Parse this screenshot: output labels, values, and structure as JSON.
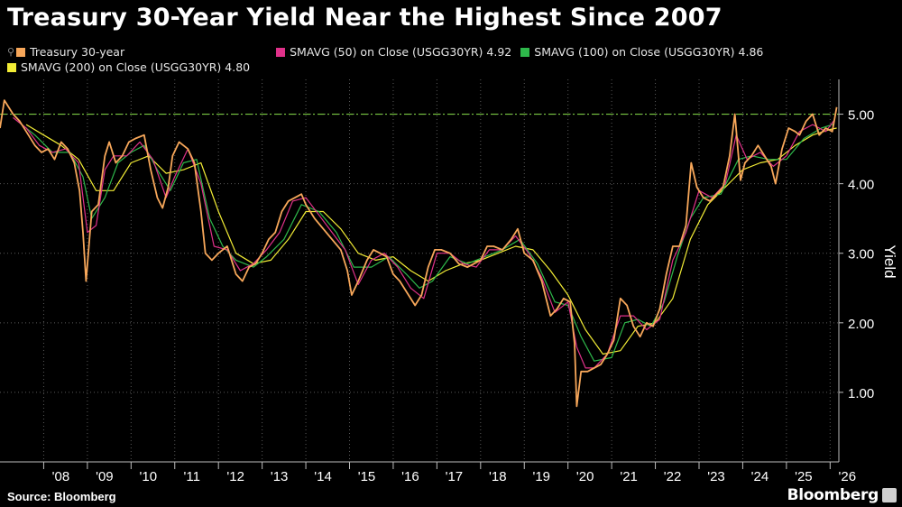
{
  "title": "Treasury 30-Year Yield Near the Highest Since 2007",
  "source": "Source: Bloomberg",
  "brand": "Bloomberg",
  "legend": [
    {
      "label": "Treasury 30-year",
      "value": "",
      "color": "#f7a75a"
    },
    {
      "label": "SMAVG (50)  on Close (USGG30YR)",
      "value": "4.92",
      "color": "#e0318a"
    },
    {
      "label": "SMAVG (100)  on Close (USGG30YR)",
      "value": "4.86",
      "color": "#2eb84b"
    },
    {
      "label": "SMAVG (200)  on Close (USGG30YR)",
      "value": "4.80",
      "color": "#f2ec35"
    }
  ],
  "chart_data": {
    "type": "line",
    "ylabel": "Yield",
    "ylim": [
      0,
      5.5
    ],
    "xlim": [
      2007.0,
      2026.2
    ],
    "yticks": [
      1.0,
      2.0,
      3.0,
      4.0,
      5.0
    ],
    "ytick_labels": [
      "1.00",
      "2.00",
      "3.00",
      "4.00",
      "5.00"
    ],
    "xticks": [
      2008,
      2009,
      2010,
      2011,
      2012,
      2013,
      2014,
      2015,
      2016,
      2017,
      2018,
      2019,
      2020,
      2021,
      2022,
      2023,
      2024,
      2025,
      2026
    ],
    "xtick_labels": [
      "'08",
      "'09",
      "'10",
      "'11",
      "'12",
      "'13",
      "'14",
      "'15",
      "'16",
      "'17",
      "'18",
      "'19",
      "'20",
      "'21",
      "'22",
      "'23",
      "'24",
      "'25",
      "'26"
    ],
    "grid": true,
    "reference_line": {
      "y": 5.0,
      "color": "#7ac943",
      "style": "dash-dot"
    },
    "axis_side": "right",
    "legend_position": "top-left",
    "series": [
      {
        "name": "Treasury 30-year",
        "color": "#f7a75a",
        "x": [
          2007.0,
          2007.1,
          2007.3,
          2007.45,
          2007.6,
          2007.8,
          2007.95,
          2008.1,
          2008.25,
          2008.4,
          2008.55,
          2008.7,
          2008.82,
          2008.9,
          2008.97,
          2009.1,
          2009.25,
          2009.4,
          2009.5,
          2009.65,
          2009.8,
          2009.95,
          2010.1,
          2010.3,
          2010.45,
          2010.6,
          2010.72,
          2010.85,
          2010.95,
          2011.1,
          2011.3,
          2011.45,
          2011.6,
          2011.7,
          2011.85,
          2012.0,
          2012.2,
          2012.4,
          2012.55,
          2012.7,
          2012.85,
          2013.0,
          2013.15,
          2013.3,
          2013.45,
          2013.6,
          2013.75,
          2013.9,
          2014.0,
          2014.2,
          2014.4,
          2014.6,
          2014.8,
          2014.95,
          2015.05,
          2015.2,
          2015.4,
          2015.55,
          2015.7,
          2015.85,
          2016.0,
          2016.15,
          2016.35,
          2016.5,
          2016.65,
          2016.8,
          2016.95,
          2017.1,
          2017.3,
          2017.5,
          2017.7,
          2017.85,
          2018.0,
          2018.15,
          2018.3,
          2018.5,
          2018.7,
          2018.85,
          2019.0,
          2019.2,
          2019.4,
          2019.6,
          2019.75,
          2019.9,
          2020.05,
          2020.15,
          2020.2,
          2020.3,
          2020.45,
          2020.6,
          2020.75,
          2020.9,
          2021.05,
          2021.2,
          2021.35,
          2021.5,
          2021.65,
          2021.8,
          2021.95,
          2022.1,
          2022.25,
          2022.4,
          2022.55,
          2022.7,
          2022.82,
          2022.95,
          2023.1,
          2023.25,
          2023.4,
          2023.55,
          2023.7,
          2023.82,
          2023.95,
          2024.05,
          2024.2,
          2024.35,
          2024.5,
          2024.65,
          2024.75,
          2024.9,
          2025.05,
          2025.2,
          2025.3,
          2025.45,
          2025.6,
          2025.75,
          2025.9,
          2026.05,
          2026.15
        ],
        "y": [
          4.8,
          5.2,
          5.0,
          4.9,
          4.75,
          4.55,
          4.45,
          4.5,
          4.35,
          4.6,
          4.5,
          4.3,
          3.9,
          3.3,
          2.6,
          3.6,
          3.7,
          4.4,
          4.6,
          4.3,
          4.4,
          4.6,
          4.65,
          4.7,
          4.2,
          3.8,
          3.65,
          3.95,
          4.4,
          4.6,
          4.5,
          4.3,
          3.6,
          3.0,
          2.9,
          3.0,
          3.1,
          2.7,
          2.6,
          2.8,
          2.85,
          3.0,
          3.2,
          3.3,
          3.6,
          3.75,
          3.8,
          3.85,
          3.7,
          3.5,
          3.35,
          3.2,
          3.05,
          2.75,
          2.4,
          2.6,
          2.9,
          3.05,
          3.0,
          2.95,
          2.7,
          2.6,
          2.4,
          2.25,
          2.4,
          2.8,
          3.05,
          3.05,
          3.0,
          2.85,
          2.8,
          2.85,
          2.9,
          3.1,
          3.1,
          3.05,
          3.2,
          3.35,
          3.0,
          2.9,
          2.6,
          2.1,
          2.2,
          2.35,
          2.3,
          1.7,
          0.8,
          1.3,
          1.3,
          1.35,
          1.4,
          1.55,
          1.75,
          2.35,
          2.25,
          1.95,
          1.8,
          2.0,
          1.95,
          2.2,
          2.7,
          3.1,
          3.1,
          3.4,
          4.3,
          3.95,
          3.8,
          3.75,
          3.85,
          3.95,
          4.4,
          5.0,
          4.05,
          4.3,
          4.4,
          4.55,
          4.4,
          4.25,
          4.0,
          4.5,
          4.8,
          4.75,
          4.7,
          4.9,
          5.0,
          4.7,
          4.8,
          4.75,
          5.1
        ]
      },
      {
        "name": "SMAVG (50)  on Close (USGG30YR)",
        "color": "#e0318a",
        "x": [
          2007.3,
          2007.6,
          2007.9,
          2008.2,
          2008.5,
          2008.8,
          2009.0,
          2009.2,
          2009.4,
          2009.6,
          2009.9,
          2010.2,
          2010.5,
          2010.8,
          2011.0,
          2011.3,
          2011.6,
          2011.9,
          2012.2,
          2012.5,
          2012.8,
          2013.1,
          2013.4,
          2013.7,
          2014.0,
          2014.3,
          2014.6,
          2014.9,
          2015.2,
          2015.5,
          2015.8,
          2016.1,
          2016.4,
          2016.7,
          2017.0,
          2017.3,
          2017.6,
          2017.9,
          2018.2,
          2018.5,
          2018.8,
          2019.1,
          2019.4,
          2019.7,
          2020.0,
          2020.2,
          2020.4,
          2020.6,
          2020.9,
          2021.2,
          2021.5,
          2021.8,
          2022.1,
          2022.4,
          2022.7,
          2023.0,
          2023.3,
          2023.6,
          2023.85,
          2024.1,
          2024.4,
          2024.7,
          2025.0,
          2025.3,
          2025.6,
          2025.9,
          2026.1
        ],
        "y": [
          4.95,
          4.8,
          4.55,
          4.45,
          4.5,
          4.3,
          3.3,
          3.4,
          4.2,
          4.4,
          4.4,
          4.6,
          4.35,
          3.8,
          4.1,
          4.5,
          4.0,
          3.1,
          3.05,
          2.75,
          2.85,
          3.05,
          3.3,
          3.75,
          3.8,
          3.55,
          3.3,
          3.05,
          2.55,
          2.9,
          3.0,
          2.8,
          2.5,
          2.35,
          3.0,
          3.0,
          2.85,
          2.8,
          3.05,
          3.05,
          3.25,
          3.0,
          2.65,
          2.15,
          2.3,
          1.65,
          1.35,
          1.35,
          1.55,
          2.1,
          2.1,
          1.9,
          2.05,
          2.9,
          3.3,
          3.9,
          3.8,
          4.0,
          4.7,
          4.35,
          4.45,
          4.25,
          4.4,
          4.75,
          4.85,
          4.75,
          4.92
        ]
      },
      {
        "name": "SMAVG (100)  on Close (USGG30YR)",
        "color": "#2eb84b",
        "x": [
          2007.4,
          2007.8,
          2008.2,
          2008.6,
          2008.9,
          2009.1,
          2009.4,
          2009.7,
          2010.0,
          2010.3,
          2010.6,
          2010.9,
          2011.2,
          2011.5,
          2011.8,
          2012.1,
          2012.4,
          2012.8,
          2013.1,
          2013.5,
          2013.9,
          2014.3,
          2014.7,
          2015.1,
          2015.5,
          2015.9,
          2016.3,
          2016.6,
          2016.9,
          2017.3,
          2017.7,
          2018.1,
          2018.5,
          2018.9,
          2019.3,
          2019.7,
          2020.0,
          2020.3,
          2020.6,
          2021.0,
          2021.3,
          2021.6,
          2021.9,
          2022.2,
          2022.5,
          2022.8,
          2023.1,
          2023.5,
          2023.9,
          2024.2,
          2024.6,
          2025.0,
          2025.4,
          2025.8,
          2026.1
        ],
        "y": [
          4.9,
          4.7,
          4.45,
          4.45,
          4.1,
          3.5,
          3.8,
          4.3,
          4.45,
          4.55,
          4.2,
          3.9,
          4.3,
          4.35,
          3.5,
          3.1,
          2.9,
          2.8,
          2.95,
          3.2,
          3.7,
          3.6,
          3.3,
          2.8,
          2.8,
          2.95,
          2.7,
          2.5,
          2.6,
          2.95,
          2.85,
          2.95,
          3.05,
          3.2,
          2.85,
          2.3,
          2.25,
          1.8,
          1.45,
          1.5,
          2.0,
          2.05,
          1.95,
          2.3,
          2.95,
          3.5,
          3.8,
          3.85,
          4.35,
          4.4,
          4.35,
          4.35,
          4.65,
          4.8,
          4.86
        ]
      },
      {
        "name": "SMAVG (200)  on Close (USGG30YR)",
        "color": "#f2ec35",
        "x": [
          2007.6,
          2008.0,
          2008.4,
          2008.8,
          2009.2,
          2009.6,
          2010.0,
          2010.4,
          2010.8,
          2011.2,
          2011.6,
          2012.0,
          2012.4,
          2012.8,
          2013.2,
          2013.6,
          2014.0,
          2014.4,
          2014.8,
          2015.2,
          2015.6,
          2016.0,
          2016.4,
          2016.8,
          2017.2,
          2017.6,
          2018.0,
          2018.4,
          2018.8,
          2019.2,
          2019.6,
          2020.0,
          2020.4,
          2020.8,
          2021.2,
          2021.6,
          2022.0,
          2022.4,
          2022.8,
          2023.2,
          2023.6,
          2024.0,
          2024.4,
          2024.8,
          2025.2,
          2025.6,
          2026.0,
          2026.15
        ],
        "y": [
          4.85,
          4.7,
          4.55,
          4.35,
          3.9,
          3.9,
          4.3,
          4.4,
          4.15,
          4.2,
          4.3,
          3.6,
          3.0,
          2.85,
          2.9,
          3.2,
          3.6,
          3.6,
          3.35,
          3.0,
          2.9,
          2.95,
          2.75,
          2.6,
          2.75,
          2.85,
          2.9,
          3.0,
          3.1,
          3.05,
          2.75,
          2.4,
          1.9,
          1.55,
          1.6,
          1.95,
          2.0,
          2.35,
          3.2,
          3.7,
          3.95,
          4.2,
          4.3,
          4.35,
          4.55,
          4.7,
          4.78,
          4.8
        ]
      }
    ]
  }
}
